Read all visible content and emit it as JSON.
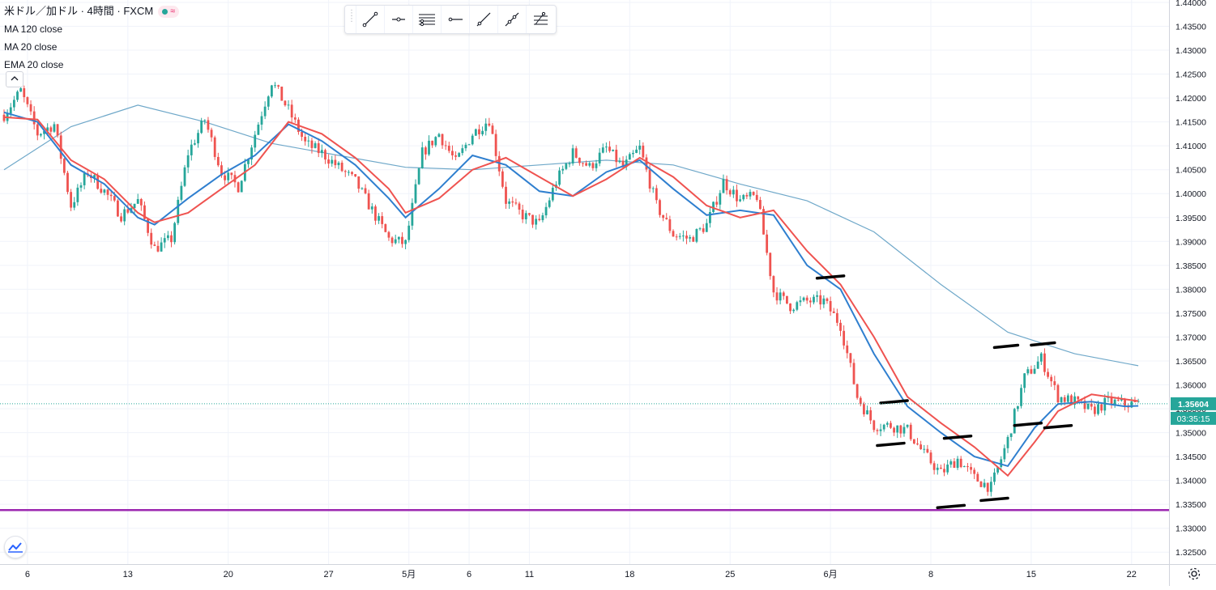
{
  "header": {
    "title": "米ドル／加ドル · 4時間 · FXCM",
    "badge_symbol": "≈",
    "indicators": [
      "MA 120 close",
      "MA 20 close",
      "EMA 20 close"
    ]
  },
  "toolbar": {
    "tools": [
      "trend-line-icon",
      "horizontal-ray-icon",
      "parallel-lines-icon",
      "horizontal-line-icon",
      "ray-icon",
      "extended-line-icon",
      "fib-icon"
    ]
  },
  "price_labels": {
    "last_price": "1.35604",
    "countdown": "03:35:15",
    "last_price_color": "#26a69a"
  },
  "colors": {
    "up": "#26a69a",
    "down": "#ef5350",
    "ma120": "#6fa8c9",
    "ma20": "#2f7fcf",
    "ema20": "#ef5350",
    "support": "#9c27b0"
  },
  "chart_data": {
    "type": "candlestick",
    "ylim": [
      1.3225,
      1.4405
    ],
    "yticks": [
      "1.44000",
      "1.43500",
      "1.43000",
      "1.42500",
      "1.42000",
      "1.41500",
      "1.41000",
      "1.40500",
      "1.40000",
      "1.39500",
      "1.39000",
      "1.38500",
      "1.38000",
      "1.37500",
      "1.37000",
      "1.36500",
      "1.36000",
      "1.35500",
      "1.35000",
      "1.34500",
      "1.34000",
      "1.33500",
      "1.33000",
      "1.32500"
    ],
    "xticks": [
      {
        "label": "6",
        "bar": 7
      },
      {
        "label": "13",
        "bar": 37
      },
      {
        "label": "20",
        "bar": 67
      },
      {
        "label": "27",
        "bar": 97
      },
      {
        "label": "5月",
        "bar": 121
      },
      {
        "label": "6",
        "bar": 139
      },
      {
        "label": "11",
        "bar": 157
      },
      {
        "label": "18",
        "bar": 187
      },
      {
        "label": "25",
        "bar": 217
      },
      {
        "label": "6月",
        "bar": 247
      },
      {
        "label": "8",
        "bar": 277
      },
      {
        "label": "15",
        "bar": 307
      },
      {
        "label": "22",
        "bar": 337
      }
    ],
    "bar_count": 340,
    "close_path": [
      [
        0,
        1.4165
      ],
      [
        5,
        1.4215
      ],
      [
        10,
        1.4125
      ],
      [
        15,
        1.4145
      ],
      [
        20,
        1.3975
      ],
      [
        25,
        1.4045
      ],
      [
        30,
        1.4005
      ],
      [
        35,
        1.3955
      ],
      [
        40,
        1.3985
      ],
      [
        45,
        1.3885
      ],
      [
        50,
        1.3905
      ],
      [
        55,
        1.4085
      ],
      [
        60,
        1.4155
      ],
      [
        65,
        1.4045
      ],
      [
        70,
        1.4015
      ],
      [
        75,
        1.4125
      ],
      [
        80,
        1.4235
      ],
      [
        85,
        1.4175
      ],
      [
        90,
        1.4105
      ],
      [
        95,
        1.4085
      ],
      [
        100,
        1.4055
      ],
      [
        105,
        1.4025
      ],
      [
        110,
        1.3965
      ],
      [
        115,
        1.3905
      ],
      [
        120,
        1.3895
      ],
      [
        125,
        1.4085
      ],
      [
        130,
        1.4125
      ],
      [
        135,
        1.4065
      ],
      [
        140,
        1.4125
      ],
      [
        145,
        1.4155
      ],
      [
        150,
        1.3985
      ],
      [
        155,
        1.3955
      ],
      [
        160,
        1.3935
      ],
      [
        165,
        1.4025
      ],
      [
        170,
        1.4085
      ],
      [
        175,
        1.4055
      ],
      [
        180,
        1.4095
      ],
      [
        185,
        1.4055
      ],
      [
        190,
        1.4095
      ],
      [
        195,
        1.3975
      ],
      [
        200,
        1.3915
      ],
      [
        205,
        1.3905
      ],
      [
        210,
        1.3935
      ],
      [
        215,
        1.4025
      ],
      [
        220,
        1.3985
      ],
      [
        225,
        1.3995
      ],
      [
        230,
        1.3795
      ],
      [
        235,
        1.3765
      ],
      [
        240,
        1.3775
      ],
      [
        245,
        1.3775
      ],
      [
        250,
        1.3725
      ],
      [
        255,
        1.3575
      ],
      [
        260,
        1.3515
      ],
      [
        265,
        1.3515
      ],
      [
        270,
        1.3505
      ],
      [
        275,
        1.3455
      ],
      [
        280,
        1.3415
      ],
      [
        285,
        1.3445
      ],
      [
        290,
        1.3405
      ],
      [
        295,
        1.3385
      ],
      [
        300,
        1.3485
      ],
      [
        305,
        1.3615
      ],
      [
        310,
        1.3655
      ],
      [
        315,
        1.3575
      ],
      [
        320,
        1.3565
      ],
      [
        325,
        1.3545
      ],
      [
        330,
        1.3565
      ],
      [
        335,
        1.356
      ],
      [
        339,
        1.356
      ]
    ],
    "series": [
      {
        "name": "MA 120 close",
        "values": [
          [
            0,
            1.405
          ],
          [
            20,
            1.414
          ],
          [
            40,
            1.4185
          ],
          [
            60,
            1.415
          ],
          [
            80,
            1.4105
          ],
          [
            100,
            1.408
          ],
          [
            120,
            1.4055
          ],
          [
            140,
            1.405
          ],
          [
            160,
            1.406
          ],
          [
            180,
            1.407
          ],
          [
            200,
            1.406
          ],
          [
            220,
            1.402
          ],
          [
            240,
            1.3985
          ],
          [
            260,
            1.392
          ],
          [
            280,
            1.381
          ],
          [
            300,
            1.371
          ],
          [
            320,
            1.3665
          ],
          [
            339,
            1.364
          ]
        ]
      },
      {
        "name": "MA 20 close",
        "values": [
          [
            0,
            1.417
          ],
          [
            10,
            1.415
          ],
          [
            20,
            1.406
          ],
          [
            30,
            1.402
          ],
          [
            40,
            1.395
          ],
          [
            45,
            1.3935
          ],
          [
            55,
            1.399
          ],
          [
            65,
            1.404
          ],
          [
            75,
            1.408
          ],
          [
            85,
            1.4145
          ],
          [
            95,
            1.411
          ],
          [
            105,
            1.406
          ],
          [
            115,
            1.399
          ],
          [
            120,
            1.395
          ],
          [
            130,
            1.401
          ],
          [
            140,
            1.408
          ],
          [
            150,
            1.406
          ],
          [
            160,
            1.4005
          ],
          [
            170,
            1.3995
          ],
          [
            180,
            1.4045
          ],
          [
            190,
            1.407
          ],
          [
            200,
            1.401
          ],
          [
            210,
            1.3955
          ],
          [
            220,
            1.3965
          ],
          [
            230,
            1.3955
          ],
          [
            240,
            1.385
          ],
          [
            250,
            1.38
          ],
          [
            260,
            1.3665
          ],
          [
            270,
            1.3555
          ],
          [
            280,
            1.35
          ],
          [
            290,
            1.345
          ],
          [
            300,
            1.343
          ],
          [
            308,
            1.351
          ],
          [
            315,
            1.356
          ],
          [
            325,
            1.3565
          ],
          [
            335,
            1.3555
          ],
          [
            339,
            1.3556
          ]
        ]
      },
      {
        "name": "EMA 20 close",
        "values": [
          [
            0,
            1.416
          ],
          [
            10,
            1.4155
          ],
          [
            20,
            1.407
          ],
          [
            30,
            1.403
          ],
          [
            40,
            1.396
          ],
          [
            45,
            1.394
          ],
          [
            55,
            1.396
          ],
          [
            65,
            1.401
          ],
          [
            75,
            1.406
          ],
          [
            85,
            1.415
          ],
          [
            95,
            1.4125
          ],
          [
            105,
            1.4075
          ],
          [
            115,
            1.401
          ],
          [
            120,
            1.396
          ],
          [
            130,
            1.399
          ],
          [
            140,
            1.405
          ],
          [
            150,
            1.4075
          ],
          [
            160,
            1.4035
          ],
          [
            170,
            1.3995
          ],
          [
            180,
            1.403
          ],
          [
            190,
            1.4075
          ],
          [
            200,
            1.4035
          ],
          [
            210,
            1.3975
          ],
          [
            220,
            1.395
          ],
          [
            230,
            1.3965
          ],
          [
            240,
            1.388
          ],
          [
            250,
            1.381
          ],
          [
            260,
            1.37
          ],
          [
            270,
            1.3575
          ],
          [
            280,
            1.352
          ],
          [
            290,
            1.347
          ],
          [
            300,
            1.341
          ],
          [
            308,
            1.348
          ],
          [
            315,
            1.3545
          ],
          [
            325,
            1.358
          ],
          [
            335,
            1.357
          ],
          [
            339,
            1.3566
          ]
        ]
      }
    ],
    "horizontal_lines": [
      {
        "price": 1.3338,
        "color": "#9c27b0"
      }
    ],
    "last_price_line": 1.35604,
    "annotations": [
      [
        [
          243,
          1.3823
        ],
        [
          251,
          1.3828
        ]
      ],
      [
        [
          262,
          1.3562
        ],
        [
          270,
          1.3567
        ]
      ],
      [
        [
          261,
          1.3473
        ],
        [
          269,
          1.3478
        ]
      ],
      [
        [
          281,
          1.3488
        ],
        [
          289,
          1.3493
        ]
      ],
      [
        [
          279,
          1.3343
        ],
        [
          287,
          1.3348
        ]
      ],
      [
        [
          292,
          1.3358
        ],
        [
          300,
          1.3363
        ]
      ],
      [
        [
          296,
          1.3678
        ],
        [
          303,
          1.3683
        ]
      ],
      [
        [
          302,
          1.3515
        ],
        [
          310,
          1.352
        ]
      ],
      [
        [
          307,
          1.3683
        ],
        [
          314,
          1.3688
        ]
      ],
      [
        [
          311,
          1.351
        ],
        [
          319,
          1.3515
        ]
      ]
    ]
  }
}
